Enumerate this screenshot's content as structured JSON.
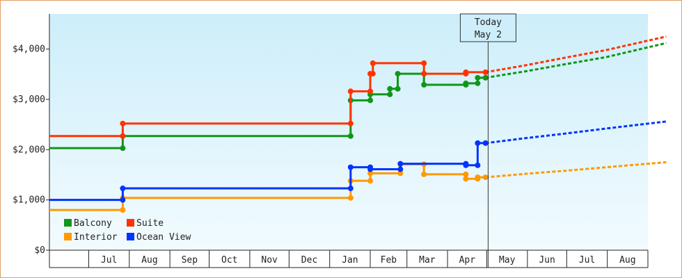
{
  "chart_data": {
    "type": "line",
    "ylim": [
      0,
      4700
    ],
    "y_ticks": [
      {
        "value": 0,
        "label": "$0"
      },
      {
        "value": 1000,
        "label": "$1,000"
      },
      {
        "value": 2000,
        "label": "$2,000"
      },
      {
        "value": 3000,
        "label": "$3,000"
      },
      {
        "value": 4000,
        "label": "$4,000"
      }
    ],
    "x_range": [
      "2024-06-01",
      "2025-09-01"
    ],
    "x_months": [
      {
        "label": "Jul",
        "start": "2024-07-01",
        "end": "2024-08-01"
      },
      {
        "label": "Aug",
        "start": "2024-08-01",
        "end": "2024-09-01"
      },
      {
        "label": "Sep",
        "start": "2024-09-01",
        "end": "2024-10-01"
      },
      {
        "label": "Oct",
        "start": "2024-10-01",
        "end": "2024-11-01"
      },
      {
        "label": "Nov",
        "start": "2024-11-01",
        "end": "2024-12-01"
      },
      {
        "label": "Dec",
        "start": "2024-12-01",
        "end": "2025-01-01"
      },
      {
        "label": "Jan",
        "start": "2025-01-01",
        "end": "2025-02-01"
      },
      {
        "label": "Feb",
        "start": "2025-02-01",
        "end": "2025-03-01"
      },
      {
        "label": "Mar",
        "start": "2025-03-01",
        "end": "2025-04-01"
      },
      {
        "label": "Apr",
        "start": "2025-04-01",
        "end": "2025-05-01"
      },
      {
        "label": "May",
        "start": "2025-05-01",
        "end": "2025-06-01"
      },
      {
        "label": "Jun",
        "start": "2025-06-01",
        "end": "2025-07-01"
      },
      {
        "label": "Jul",
        "start": "2025-07-01",
        "end": "2025-08-01"
      },
      {
        "label": "Aug",
        "start": "2025-08-01",
        "end": "2025-09-01"
      }
    ],
    "today": {
      "line1": "Today",
      "line2": "May 2",
      "date": "2025-05-02"
    },
    "legend_placement": "bottom-left",
    "grid": false,
    "series": [
      {
        "name": "Balcony",
        "color": "#109618",
        "points": [
          [
            "2024-06-01",
            2030
          ],
          [
            "2024-07-27",
            2030
          ],
          [
            "2024-07-27",
            2270
          ],
          [
            "2025-01-17",
            2270
          ],
          [
            "2025-01-17",
            2980
          ],
          [
            "2025-02-01",
            2980
          ],
          [
            "2025-02-01",
            3100
          ],
          [
            "2025-02-16",
            3100
          ],
          [
            "2025-02-16",
            3210
          ],
          [
            "2025-02-22",
            3210
          ],
          [
            "2025-02-22",
            3510
          ],
          [
            "2025-03-14",
            3510
          ],
          [
            "2025-03-14",
            3290
          ],
          [
            "2025-04-15",
            3290
          ],
          [
            "2025-04-15",
            3320
          ],
          [
            "2025-04-24",
            3320
          ],
          [
            "2025-04-24",
            3430
          ],
          [
            "2025-04-30",
            3430
          ]
        ],
        "forecast": [
          [
            "2025-04-30",
            3430
          ],
          [
            "2025-05-31",
            3560
          ],
          [
            "2025-06-30",
            3700
          ],
          [
            "2025-07-31",
            3840
          ],
          [
            "2025-09-15",
            4120
          ]
        ]
      },
      {
        "name": "Suite",
        "color": "#ff3300",
        "points": [
          [
            "2024-06-01",
            2270
          ],
          [
            "2024-07-27",
            2270
          ],
          [
            "2024-07-27",
            2520
          ],
          [
            "2025-01-17",
            2520
          ],
          [
            "2025-01-17",
            3160
          ],
          [
            "2025-02-01",
            3160
          ],
          [
            "2025-02-01",
            3510
          ],
          [
            "2025-02-03",
            3510
          ],
          [
            "2025-02-03",
            3720
          ],
          [
            "2025-03-14",
            3720
          ],
          [
            "2025-03-14",
            3510
          ],
          [
            "2025-04-15",
            3510
          ],
          [
            "2025-04-15",
            3540
          ],
          [
            "2025-04-30",
            3540
          ]
        ],
        "forecast": [
          [
            "2025-04-30",
            3540
          ],
          [
            "2025-05-31",
            3680
          ],
          [
            "2025-06-30",
            3830
          ],
          [
            "2025-07-31",
            3980
          ],
          [
            "2025-09-15",
            4250
          ]
        ]
      },
      {
        "name": "Interior",
        "color": "#ff9900",
        "points": [
          [
            "2024-06-01",
            800
          ],
          [
            "2024-07-27",
            800
          ],
          [
            "2024-07-27",
            1040
          ],
          [
            "2025-01-17",
            1040
          ],
          [
            "2025-01-17",
            1380
          ],
          [
            "2025-02-01",
            1380
          ],
          [
            "2025-02-01",
            1530
          ],
          [
            "2025-02-24",
            1530
          ],
          [
            "2025-02-24",
            1710
          ],
          [
            "2025-03-14",
            1710
          ],
          [
            "2025-03-14",
            1510
          ],
          [
            "2025-04-15",
            1510
          ],
          [
            "2025-04-15",
            1420
          ],
          [
            "2025-04-24",
            1420
          ],
          [
            "2025-04-24",
            1450
          ],
          [
            "2025-04-30",
            1450
          ]
        ],
        "forecast": [
          [
            "2025-04-30",
            1450
          ],
          [
            "2025-05-31",
            1520
          ],
          [
            "2025-06-30",
            1580
          ],
          [
            "2025-07-31",
            1650
          ],
          [
            "2025-09-15",
            1750
          ]
        ]
      },
      {
        "name": "Ocean View",
        "color": "#0033ff",
        "points": [
          [
            "2024-06-01",
            1000
          ],
          [
            "2024-07-27",
            1000
          ],
          [
            "2024-07-27",
            1230
          ],
          [
            "2025-01-17",
            1230
          ],
          [
            "2025-01-17",
            1650
          ],
          [
            "2025-02-01",
            1650
          ],
          [
            "2025-02-01",
            1610
          ],
          [
            "2025-02-24",
            1610
          ],
          [
            "2025-02-24",
            1720
          ],
          [
            "2025-04-15",
            1720
          ],
          [
            "2025-04-15",
            1690
          ],
          [
            "2025-04-24",
            1690
          ],
          [
            "2025-04-24",
            2130
          ],
          [
            "2025-04-30",
            2130
          ]
        ],
        "forecast": [
          [
            "2025-04-30",
            2130
          ],
          [
            "2025-05-31",
            2230
          ],
          [
            "2025-06-30",
            2320
          ],
          [
            "2025-07-31",
            2420
          ],
          [
            "2025-09-15",
            2560
          ]
        ]
      }
    ]
  }
}
